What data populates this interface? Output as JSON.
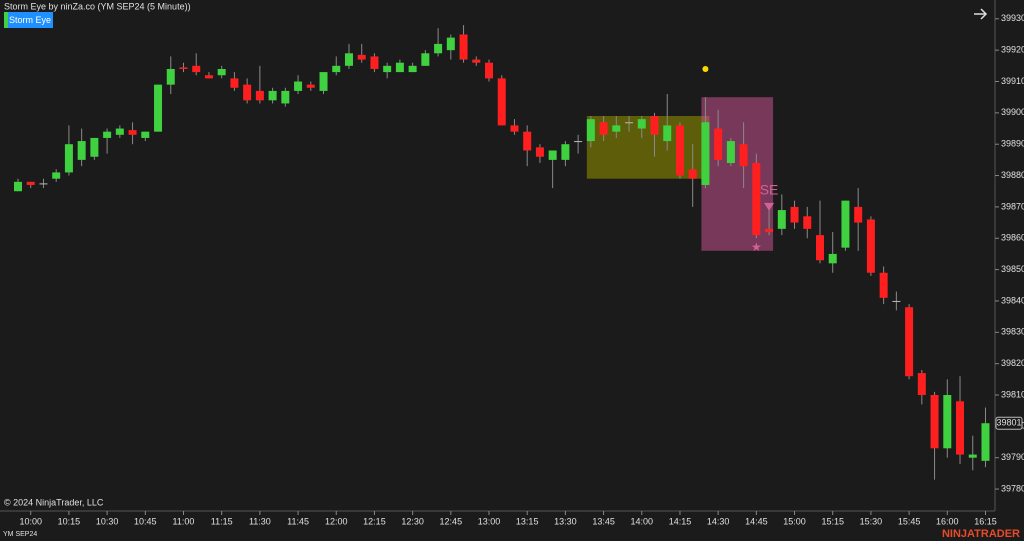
{
  "header": {
    "title": "Storm Eye by ninZa.co (YM SEP24 (5 Minute))",
    "button": "Storm Eye"
  },
  "footer": {
    "copyright": "© 2024 NinjaTrader, LLC",
    "instrument": "YM SEP24",
    "logo": "NINJATRADER"
  },
  "chart_data": {
    "type": "candlestick",
    "categories": [
      null,
      "10:00",
      null,
      null,
      "10:15",
      null,
      null,
      "10:30",
      null,
      null,
      "10:45",
      null,
      null,
      "11:00",
      null,
      null,
      "11:15",
      null,
      null,
      "11:30",
      null,
      null,
      "11:45",
      null,
      null,
      "12:00",
      null,
      null,
      "12:15",
      null,
      null,
      "12:30",
      null,
      null,
      "12:45",
      null,
      null,
      "13:00",
      null,
      null,
      "13:15",
      null,
      null,
      "13:30",
      null,
      null,
      "13:45",
      null,
      null,
      "14:00",
      null,
      null,
      "14:15",
      null,
      null,
      "14:30",
      null,
      null,
      "14:45",
      null,
      null,
      "15:00",
      null,
      null,
      "15:15",
      null,
      null,
      "15:30",
      null,
      null,
      "15:45",
      null,
      null,
      "16:00",
      null,
      null,
      "16:15"
    ],
    "series": [
      {
        "open": [
          39875,
          39878,
          39877.5,
          39879,
          39881,
          39885,
          39886,
          39892,
          39893,
          39894.5,
          39892,
          39894,
          39909,
          39914.5,
          39915,
          39912,
          39912,
          39911,
          39909,
          39907,
          39904,
          39903,
          39907,
          39909,
          39907,
          39913,
          39915,
          39918.5,
          39918,
          39913,
          39913,
          39913,
          39915,
          39919,
          39920,
          39925,
          39917,
          39916,
          39911,
          39896,
          39894,
          39889,
          39885,
          39885,
          39891,
          39891,
          39897,
          39894,
          39897,
          39895,
          39899,
          39891,
          39896,
          39882,
          39877,
          39895,
          39884,
          39890,
          39884,
          39863,
          39863,
          39870,
          39867,
          39861,
          39852,
          39857,
          39870,
          39866,
          39849,
          39840,
          39838,
          39817,
          39810,
          39793,
          39808,
          39790,
          39789
        ],
        "high": [
          39879,
          39878,
          39879,
          39882,
          39896,
          39895,
          39892,
          39895,
          39896,
          39897,
          39894,
          39909,
          39918,
          39916,
          39919,
          39913,
          39915,
          39913,
          39911,
          39915,
          39908,
          39908,
          39912,
          39910,
          39913,
          39918,
          39922,
          39922,
          39919,
          39916,
          39917,
          39916,
          39920,
          39927,
          39925,
          39928,
          39918,
          39917,
          39912,
          39898,
          39896,
          39890,
          39888,
          39891,
          39893,
          39899,
          39899,
          39899,
          39899,
          39899,
          39900,
          39906,
          39897,
          39890,
          39905,
          39901,
          39892,
          39897,
          39887,
          39871,
          39874,
          39872,
          39870,
          39872,
          39862,
          39872,
          39876,
          39867,
          39851,
          39843,
          39839,
          39818,
          39811,
          39815,
          39816,
          39797,
          39806
        ],
        "low": [
          39875,
          39876,
          39876,
          39878,
          39880,
          39883,
          39885,
          39887,
          39892,
          39890,
          39891,
          39894,
          39906,
          39913,
          39912,
          39911,
          39911,
          39907,
          39903,
          39903,
          39903,
          39902,
          39906,
          39907,
          39906,
          39912,
          39914,
          39916,
          39913,
          39911,
          39913,
          39913,
          39915,
          39918,
          39917,
          39916,
          39915,
          39910,
          39896,
          39893,
          39883,
          39884,
          39876,
          39883,
          39887,
          39889,
          39891,
          39892,
          39894,
          39892,
          39886,
          39888,
          39879,
          39870,
          39876,
          39883,
          39883,
          39876,
          39860,
          39861,
          39861,
          39863,
          39860,
          39852,
          39849,
          39856,
          39856,
          39848,
          39839,
          39837,
          39815,
          39807,
          39783,
          39790,
          39788,
          39786,
          39787
        ],
        "close": [
          39878,
          39877,
          39877.5,
          39881,
          39890,
          39891,
          39892,
          39894,
          39895,
          39893,
          39894,
          39909,
          39914,
          39914,
          39913,
          39911,
          39914,
          39908,
          39904,
          39904,
          39907,
          39907,
          39910,
          39908,
          39913,
          39915,
          39919,
          39917,
          39914,
          39915,
          39916,
          39915,
          39919,
          39922,
          39924,
          39917,
          39916,
          39911,
          39896,
          39894,
          39888,
          39886,
          39888,
          39890,
          39891,
          39898,
          39893,
          39896,
          39897,
          39898,
          39893,
          39896,
          39880,
          39879,
          39897,
          39885,
          39891,
          39883,
          39861,
          39862,
          39869,
          39865,
          39863,
          39853,
          39855,
          39872,
          39865,
          39849,
          39841,
          39840,
          39816,
          39810,
          39793,
          39810,
          39791,
          39791,
          39801
        ]
      }
    ],
    "up_color": "#3fd13f",
    "down_color": "#ff1f1f",
    "neutral_color": "#bbbbbb",
    "ylim": [
      39773,
      39936
    ],
    "yticks": [
      39780,
      39790,
      39800,
      39810,
      39820,
      39830,
      39840,
      39850,
      39860,
      39870,
      39880,
      39890,
      39900,
      39910,
      39920,
      39930
    ],
    "zones": [
      {
        "low": 39879,
        "high": 39899,
        "color": "#8c8c00"
      },
      {
        "low": 39856,
        "high": 39905,
        "color": "#c4508c"
      }
    ],
    "signals": {
      "dot": 39914,
      "triangle": 39870,
      "star": 39857,
      "label": "SE"
    }
  }
}
